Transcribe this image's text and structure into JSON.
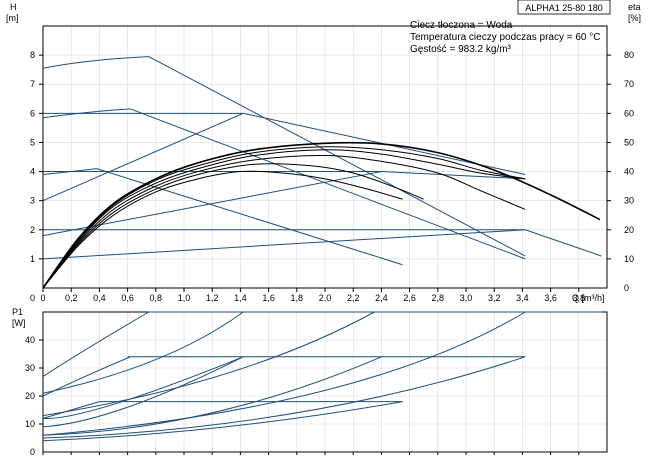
{
  "chart_data": [
    {
      "type": "line",
      "title": "ALPHA1 25-80 180",
      "info_lines": [
        "Ciecz tłoczona = Woda",
        "Temperatura cieczy podczas pracy = 60 °C",
        "Gęstość = 983.2 kg/m³"
      ],
      "y_axis_title": "H",
      "y_axis_unit": "[m]",
      "y2_axis_title": "eta",
      "y2_axis_unit": "[%]",
      "x_axis_label": "Q [m³/h]",
      "xlim": [
        0,
        4.0
      ],
      "ylim": [
        0,
        9
      ],
      "y2lim": [
        0,
        90
      ],
      "x_ticks": [
        "0",
        "0,2",
        "0,4",
        "0,6",
        "0,8",
        "1,0",
        "1,2",
        "1,4",
        "1,6",
        "1,8",
        "2,0",
        "2,2",
        "2,4",
        "2,6",
        "2,8",
        "3,0",
        "3,2",
        "3,4",
        "3,6",
        "3,8"
      ],
      "y_ticks": [
        "1",
        "2",
        "3",
        "4",
        "5",
        "6",
        "7",
        "8"
      ],
      "y2_ticks": [
        "10",
        "20",
        "30",
        "40",
        "50",
        "60",
        "70",
        "80"
      ],
      "grid": true,
      "series": [
        {
          "color": "#1f4e79",
          "style": "curve",
          "x": [
            0,
            0.35,
            0.75
          ],
          "y": [
            7.55,
            7.8,
            7.95
          ]
        },
        {
          "color": "#1f4e79",
          "style": "line",
          "x": [
            0.75,
            3.42
          ],
          "y": [
            7.95,
            1.1
          ]
        },
        {
          "color": "#1f4e79",
          "style": "curve",
          "x": [
            0,
            0.35,
            0.62
          ],
          "y": [
            5.85,
            6.05,
            6.15
          ]
        },
        {
          "color": "#1f4e79",
          "style": "line",
          "x": [
            0.62,
            3.42
          ],
          "y": [
            6.15,
            1.0
          ]
        },
        {
          "color": "#1f4e79",
          "style": "curve",
          "x": [
            0,
            0.2,
            0.38
          ],
          "y": [
            3.9,
            4.0,
            4.1
          ]
        },
        {
          "color": "#1f4e79",
          "style": "line",
          "x": [
            0.38,
            2.55
          ],
          "y": [
            4.1,
            0.8
          ]
        },
        {
          "color": "#1f4e79",
          "style": "line",
          "x": [
            0,
            1.42
          ],
          "y": [
            6.0,
            6.0
          ]
        },
        {
          "color": "#1f4e79",
          "style": "line",
          "x": [
            1.42,
            3.42
          ],
          "y": [
            6.0,
            3.9
          ]
        },
        {
          "color": "#1f4e79",
          "style": "line",
          "x": [
            0,
            2.4
          ],
          "y": [
            4.0,
            4.0
          ]
        },
        {
          "color": "#1f4e79",
          "style": "line",
          "x": [
            2.4,
            3.42
          ],
          "y": [
            4.0,
            3.75
          ]
        },
        {
          "color": "#1f4e79",
          "style": "line",
          "x": [
            0,
            3.42
          ],
          "y": [
            2.0,
            2.0
          ]
        },
        {
          "color": "#1f4e79",
          "style": "line",
          "x": [
            3.42,
            3.96
          ],
          "y": [
            2.0,
            1.1
          ]
        },
        {
          "color": "#1f4e79",
          "style": "line",
          "x": [
            0,
            1.42
          ],
          "y": [
            3.0,
            6.0
          ]
        },
        {
          "color": "#1f4e79",
          "style": "line",
          "x": [
            0,
            2.4
          ],
          "y": [
            1.8,
            4.0
          ]
        },
        {
          "color": "#1f4e79",
          "style": "line",
          "x": [
            0,
            3.42
          ],
          "y": [
            1.0,
            2.0
          ]
        },
        {
          "color": "#000000",
          "style": "curve",
          "width": 1.6,
          "x": [
            0,
            0.25,
            0.5,
            0.8,
            1.1,
            1.5,
            2.0,
            2.4,
            2.8,
            3.2,
            3.6,
            3.95
          ],
          "y": [
            0,
            1.7,
            2.9,
            3.75,
            4.3,
            4.75,
            4.97,
            4.95,
            4.65,
            4.05,
            3.2,
            2.35
          ]
        },
        {
          "color": "#000000",
          "style": "curve",
          "x": [
            0,
            0.25,
            0.5,
            0.8,
            1.1,
            1.5,
            2.0,
            2.4,
            2.8,
            3.1,
            3.42
          ],
          "y": [
            0,
            1.65,
            2.85,
            3.7,
            4.2,
            4.65,
            4.85,
            4.75,
            4.45,
            4.05,
            3.75
          ]
        },
        {
          "color": "#000000",
          "style": "curve",
          "x": [
            0,
            0.25,
            0.5,
            0.8,
            1.1,
            1.5,
            2.0,
            2.4,
            2.8,
            3.1,
            3.42
          ],
          "y": [
            0,
            1.6,
            2.8,
            3.6,
            4.1,
            4.55,
            4.75,
            4.6,
            4.25,
            3.95,
            3.75
          ]
        },
        {
          "color": "#000000",
          "style": "curve",
          "x": [
            0,
            0.25,
            0.5,
            0.8,
            1.1,
            1.5,
            2.0,
            2.4,
            2.8,
            3.1,
            3.42
          ],
          "y": [
            0,
            1.55,
            2.7,
            3.5,
            4.0,
            4.4,
            4.55,
            4.35,
            3.95,
            3.35,
            2.7
          ]
        },
        {
          "color": "#000000",
          "style": "curve",
          "x": [
            0,
            0.25,
            0.5,
            0.8,
            1.1,
            1.5,
            1.9,
            2.2,
            2.5,
            2.7
          ],
          "y": [
            0,
            1.5,
            2.6,
            3.4,
            3.9,
            4.25,
            4.2,
            3.95,
            3.45,
            3.05
          ]
        },
        {
          "color": "#000000",
          "style": "curve",
          "x": [
            0,
            0.25,
            0.5,
            0.8,
            1.1,
            1.4,
            1.7,
            2.0,
            2.3,
            2.55
          ],
          "y": [
            0,
            1.45,
            2.5,
            3.3,
            3.75,
            4.0,
            3.95,
            3.75,
            3.4,
            3.05
          ]
        }
      ]
    },
    {
      "type": "line",
      "y_axis_title": "P1",
      "y_axis_unit": "[W]",
      "xlim": [
        0,
        4.0
      ],
      "ylim": [
        0,
        50
      ],
      "y_ticks": [
        "10",
        "20",
        "30",
        "40"
      ],
      "grid": true,
      "series": [
        {
          "color": "#1f4e79",
          "style": "line",
          "x": [
            0.75,
            3.96
          ],
          "y": [
            50,
            50
          ]
        },
        {
          "color": "#1f4e79",
          "style": "line",
          "x": [
            0.6,
            3.42
          ],
          "y": [
            34,
            34
          ]
        },
        {
          "color": "#1f4e79",
          "style": "line",
          "x": [
            0.4,
            2.55
          ],
          "y": [
            18,
            18
          ]
        },
        {
          "color": "#1f4e79",
          "style": "curve",
          "x": [
            0,
            0.35,
            0.75
          ],
          "y": [
            27,
            38,
            50
          ]
        },
        {
          "color": "#1f4e79",
          "style": "curve",
          "x": [
            0,
            0.8,
            1.42
          ],
          "y": [
            21,
            33,
            50
          ]
        },
        {
          "color": "#1f4e79",
          "style": "curve",
          "x": [
            0,
            1.3,
            2.35
          ],
          "y": [
            13,
            28,
            50
          ]
        },
        {
          "color": "#1f4e79",
          "style": "curve",
          "x": [
            0,
            2.0,
            3.42
          ],
          "y": [
            6,
            22,
            50
          ]
        },
        {
          "color": "#1f4e79",
          "style": "curve",
          "x": [
            0,
            0.3,
            0.62
          ],
          "y": [
            20,
            27,
            34
          ]
        },
        {
          "color": "#1f4e79",
          "style": "curve",
          "x": [
            0,
            0.5,
            1.42
          ],
          "y": [
            12,
            17,
            34
          ]
        },
        {
          "color": "#1f4e79",
          "style": "curve",
          "x": [
            0,
            0.6,
            1.42
          ],
          "y": [
            9,
            16,
            34
          ]
        },
        {
          "color": "#1f4e79",
          "style": "curve",
          "x": [
            0,
            1.2,
            2.4
          ],
          "y": [
            6,
            14,
            34
          ]
        },
        {
          "color": "#1f4e79",
          "style": "curve",
          "x": [
            0,
            0.2,
            0.4
          ],
          "y": [
            12,
            15,
            18
          ]
        },
        {
          "color": "#1f4e79",
          "style": "curve",
          "x": [
            0,
            1.8,
            3.42
          ],
          "y": [
            5,
            14,
            34
          ]
        },
        {
          "color": "#1f4e79",
          "style": "curve",
          "x": [
            0,
            1.3,
            2.55
          ],
          "y": [
            4,
            9,
            18
          ]
        }
      ]
    }
  ]
}
